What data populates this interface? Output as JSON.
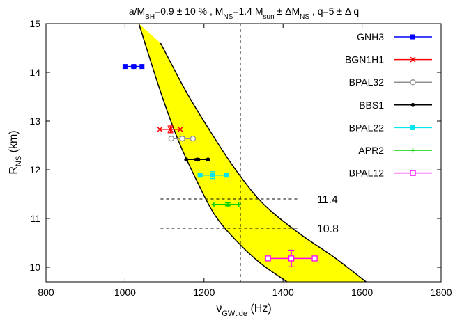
{
  "chart_data": {
    "type": "scatter",
    "title": {
      "segments": [
        {
          "t": "a/M"
        },
        {
          "t": "BH",
          "sub": true
        },
        {
          "t": "=0.9 ± 10 % ,   M"
        },
        {
          "t": "NS",
          "sub": true
        },
        {
          "t": "=1.4 M"
        },
        {
          "t": "sun",
          "sub": true
        },
        {
          "t": " ± ΔM"
        },
        {
          "t": "NS",
          "sub": true
        },
        {
          "t": " ,   q=5 ± Δ q"
        }
      ]
    },
    "xlabel": {
      "main": "ν",
      "sub": "GWtide",
      "rest": " (Hz)"
    },
    "ylabel": {
      "main": "R",
      "sub": "NS",
      "rest": " (km)"
    },
    "xlim": [
      800,
      1800
    ],
    "ylim": [
      9.7,
      15
    ],
    "xticks": [
      800,
      1000,
      1200,
      1400,
      1600,
      1800
    ],
    "yticks": [
      10,
      11,
      12,
      13,
      14,
      15
    ],
    "band": {
      "fill": "#ffff00",
      "left_edge": [
        [
          1035,
          15.0
        ],
        [
          1090,
          13.6
        ],
        [
          1135,
          12.6
        ],
        [
          1180,
          11.8
        ],
        [
          1225,
          11.1
        ],
        [
          1275,
          10.6
        ],
        [
          1340,
          10.1
        ],
        [
          1410,
          9.7
        ]
      ],
      "right_edge": [
        [
          1090,
          14.6
        ],
        [
          1155,
          13.6
        ],
        [
          1215,
          12.8
        ],
        [
          1280,
          12.0
        ],
        [
          1350,
          11.3
        ],
        [
          1440,
          10.7
        ],
        [
          1530,
          10.2
        ],
        [
          1610,
          9.7
        ]
      ]
    },
    "vertical_line": {
      "x": 1292
    },
    "horizontal_lines": [
      {
        "y": 11.4,
        "x_range": [
          1090,
          1440
        ],
        "label": "11.4"
      },
      {
        "y": 10.8,
        "x_range": [
          1090,
          1440
        ],
        "label": "10.8"
      }
    ],
    "series": [
      {
        "name": "GNH3",
        "color": "#0000ff",
        "marker": "square-filled",
        "y": 14.12,
        "x": [
          1000,
          1022,
          1043
        ],
        "yerr": 0.02
      },
      {
        "name": "BGN1H1",
        "color": "#ff0000",
        "marker": "cross",
        "y": 12.83,
        "x": [
          1088,
          1115,
          1140
        ],
        "yerr": 0.07
      },
      {
        "name": "BPAL32",
        "color": "#909090",
        "marker": "circle-open",
        "y": 12.64,
        "x": [
          1117,
          1145,
          1172
        ],
        "yerr": 0.04
      },
      {
        "name": "BBS1",
        "color": "#000000",
        "marker": "circle-filled",
        "y": 12.21,
        "x": [
          1155,
          1183,
          1210
        ],
        "yerr": 0.02
      },
      {
        "name": "BPAL22",
        "color": "#00e5ee",
        "marker": "square-filled",
        "y": 11.89,
        "x": [
          1190,
          1222,
          1257
        ],
        "yerr": 0.07
      },
      {
        "name": "APR2",
        "color": "#00d000",
        "marker": "plus",
        "y": 11.29,
        "x": [
          1225,
          1260,
          1288
        ],
        "yerr": 0.03
      },
      {
        "name": "BPAL12",
        "color": "#ff00ff",
        "marker": "square-open",
        "y": 10.18,
        "x": [
          1362,
          1421,
          1480
        ],
        "yerr": 0.17
      }
    ],
    "legend": {
      "position": "top-right"
    },
    "grid": false
  }
}
